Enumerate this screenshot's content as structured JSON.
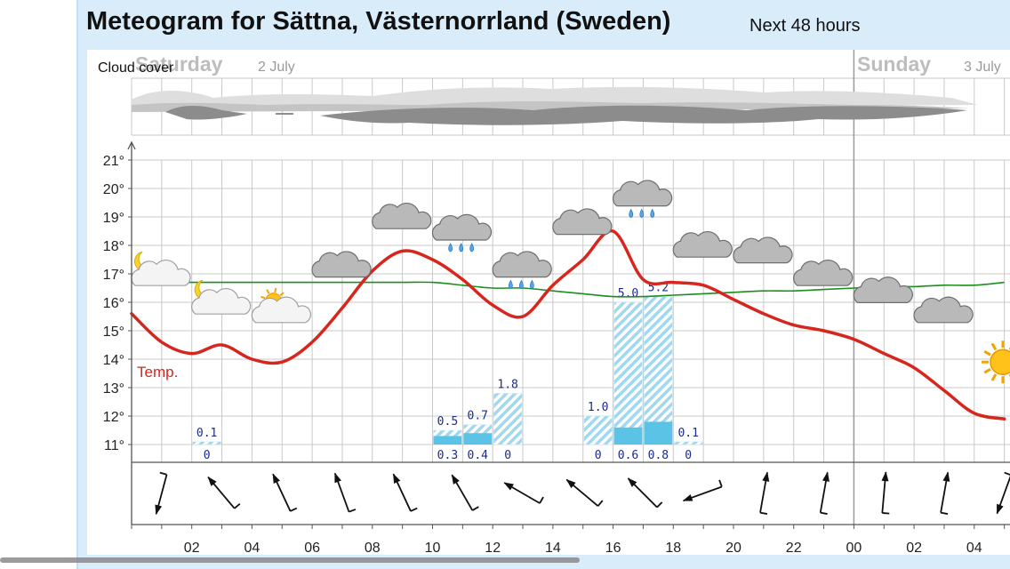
{
  "header": {
    "title": "Meteogram for Sättna, Västernorrland (Sweden)",
    "subtitle": "Next 48 hours"
  },
  "days": [
    {
      "name": "Saturday",
      "date": "2 July"
    },
    {
      "name": "Sunday",
      "date": "3 July"
    }
  ],
  "labels": {
    "cloud_cover": "Cloud cover",
    "temp": "Temp."
  },
  "colors": {
    "temperature": "#d7261e",
    "dew_line": "#1b8f1b",
    "precip_max": "#9fd8ef",
    "precip_actual": "#5bc3e6",
    "grid": "#c9c9c9",
    "cloud_light": "#dedede",
    "cloud_dark": "#8c8c8c"
  },
  "chart_data": {
    "type": "line",
    "x_ticks": [
      "02",
      "04",
      "06",
      "08",
      "10",
      "12",
      "14",
      "16",
      "18",
      "20",
      "22",
      "00",
      "02",
      "04"
    ],
    "y_ticks": [
      "11°",
      "12°",
      "13°",
      "14°",
      "15°",
      "16°",
      "17°",
      "18°",
      "19°",
      "20°",
      "21°"
    ],
    "ylim": [
      10.5,
      21.5
    ],
    "x_hours": [
      0,
      1,
      2,
      3,
      4,
      5,
      6,
      7,
      8,
      9,
      10,
      11,
      12,
      13,
      14,
      15,
      16,
      17,
      18,
      19,
      20,
      21,
      22,
      23,
      24,
      25,
      26,
      27,
      28,
      29
    ],
    "series": [
      {
        "name": "Temp.",
        "values": [
          15.6,
          14.6,
          14.2,
          14.5,
          14.0,
          13.9,
          14.6,
          15.8,
          17.1,
          17.8,
          17.5,
          16.8,
          15.9,
          15.5,
          16.6,
          17.5,
          18.5,
          16.8,
          16.7,
          16.6,
          16.1,
          15.6,
          15.2,
          15.0,
          14.7,
          14.2,
          13.7,
          12.9,
          12.1,
          11.9
        ]
      },
      {
        "values": [
          16.7,
          16.7,
          16.7,
          16.7,
          16.7,
          16.7,
          16.7,
          16.7,
          16.7,
          16.7,
          16.7,
          16.6,
          16.5,
          16.5,
          16.4,
          16.3,
          16.2,
          16.2,
          16.25,
          16.3,
          16.35,
          16.4,
          16.4,
          16.45,
          16.5,
          16.55,
          16.55,
          16.6,
          16.6,
          16.7
        ]
      }
    ],
    "precipitation": [
      {
        "hour": 2,
        "max": "0.1",
        "value": "0",
        "max_mm": 0.1,
        "value_mm": 0
      },
      {
        "hour": 10,
        "max": "0.5",
        "value": "0.3",
        "max_mm": 0.5,
        "value_mm": 0.3
      },
      {
        "hour": 11,
        "max": "0.7",
        "value": "0.4",
        "max_mm": 0.7,
        "value_mm": 0.4
      },
      {
        "hour": 12,
        "max": "1.8",
        "value": "0",
        "max_mm": 1.8,
        "value_mm": 0
      },
      {
        "hour": 15,
        "max": "1.0",
        "value": "0",
        "max_mm": 1.0,
        "value_mm": 0
      },
      {
        "hour": 16,
        "max": "5.0",
        "value": "0.6",
        "max_mm": 5.0,
        "value_mm": 0.6
      },
      {
        "hour": 17,
        "max": "5.2",
        "value": "0.8",
        "max_mm": 5.2,
        "value_mm": 0.8
      },
      {
        "hour": 18,
        "max": "0.1",
        "value": "0",
        "max_mm": 0.1,
        "value_mm": 0
      }
    ],
    "weather_icons": [
      {
        "hour": 0,
        "temp": 16.9,
        "icon": "moon-partly-cloudy-icon"
      },
      {
        "hour": 2,
        "temp": 15.9,
        "icon": "moon-partly-cloudy-icon"
      },
      {
        "hour": 4,
        "temp": 15.6,
        "icon": "sun-partly-cloudy-icon"
      },
      {
        "hour": 6,
        "temp": 17.2,
        "icon": "cloud-icon"
      },
      {
        "hour": 8,
        "temp": 18.9,
        "icon": "cloud-icon"
      },
      {
        "hour": 10,
        "temp": 18.5,
        "icon": "rain-cloud-icon"
      },
      {
        "hour": 12,
        "temp": 17.2,
        "icon": "rain-cloud-icon"
      },
      {
        "hour": 14,
        "temp": 18.7,
        "icon": "cloud-icon"
      },
      {
        "hour": 16,
        "temp": 19.7,
        "icon": "rain-cloud-icon"
      },
      {
        "hour": 18,
        "temp": 17.9,
        "icon": "cloud-icon"
      },
      {
        "hour": 20,
        "temp": 17.7,
        "icon": "cloud-icon"
      },
      {
        "hour": 22,
        "temp": 16.9,
        "icon": "cloud-icon"
      },
      {
        "hour": 24,
        "temp": 16.3,
        "icon": "cloud-icon"
      },
      {
        "hour": 26,
        "temp": 15.6,
        "icon": "cloud-icon"
      },
      {
        "hour": 28,
        "temp": 13.9,
        "icon": "sun-icon"
      }
    ],
    "wind_directions_deg": [
      195,
      320,
      335,
      340,
      335,
      330,
      300,
      310,
      315,
      250,
      10,
      10,
      5,
      10,
      200,
      250
    ]
  }
}
